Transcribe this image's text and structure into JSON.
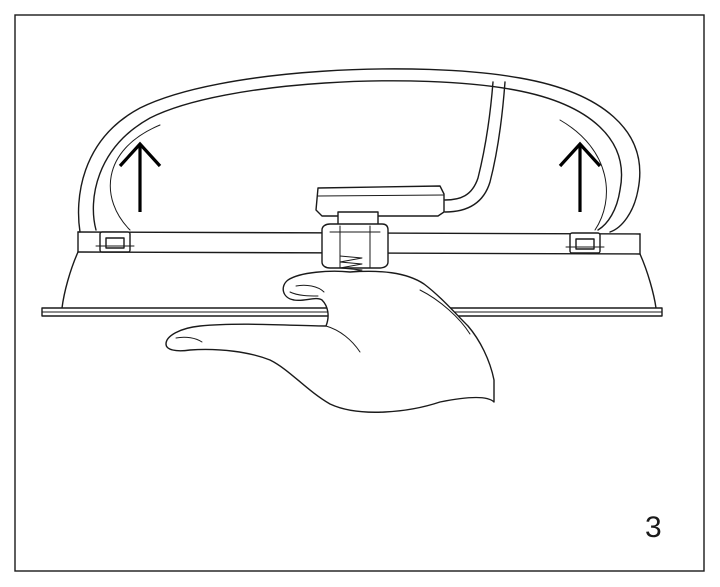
{
  "step": {
    "number": "3"
  },
  "icons": {
    "arrow_left": "arrow-up-icon",
    "arrow_right": "arrow-up-icon"
  },
  "colors": {
    "line": "#1a1a1a",
    "background": "#ffffff"
  }
}
